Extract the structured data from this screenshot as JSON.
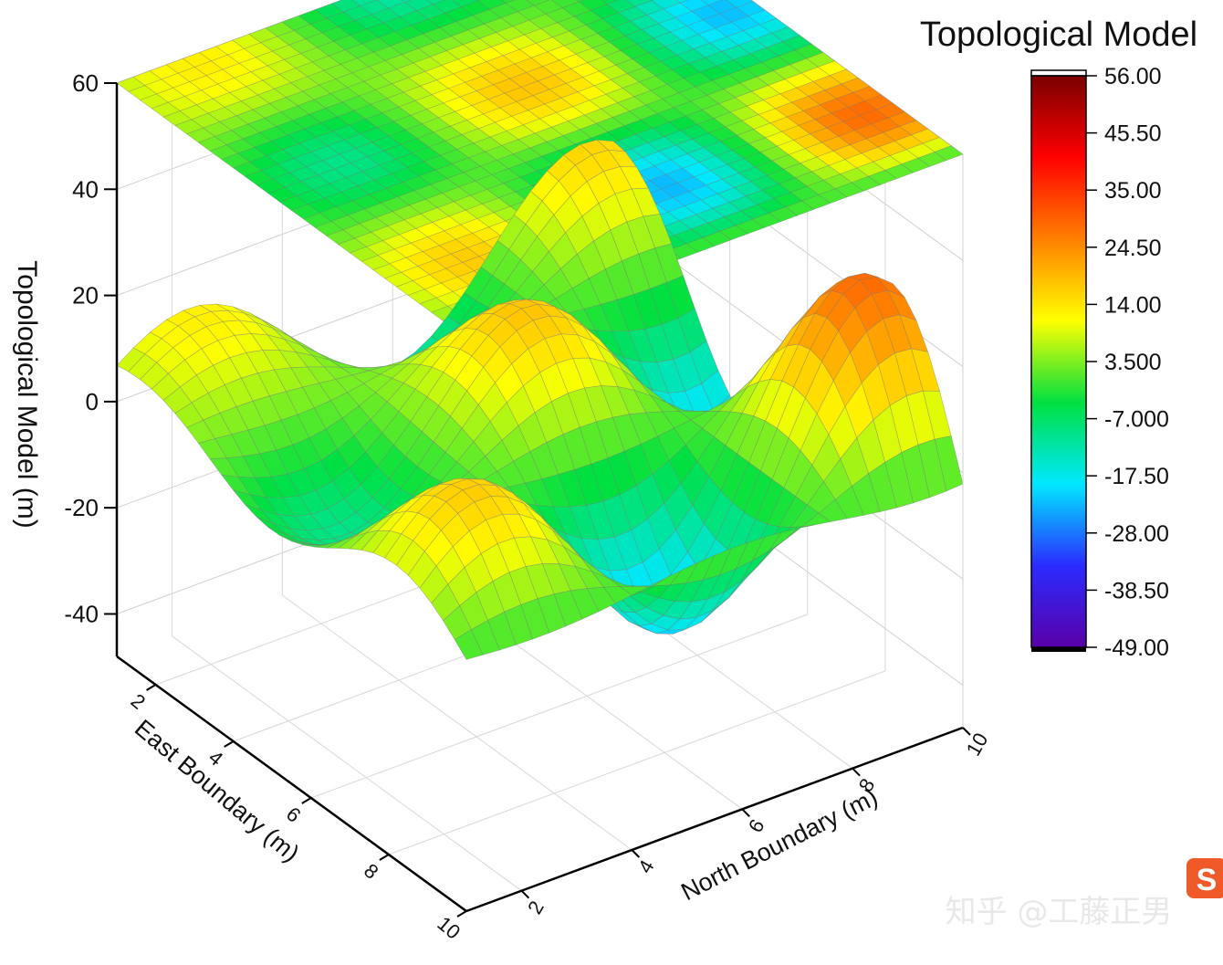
{
  "chart_data": {
    "type": "surface3d",
    "title": "Topological Model",
    "xlabel": "East Boundary (m)",
    "ylabel": "North Boundary (m)",
    "zlabel": "Topological Model (m)",
    "x_ticks": [
      "2",
      "4",
      "6",
      "8",
      "10"
    ],
    "y_ticks": [
      "2",
      "4",
      "6",
      "8",
      "10"
    ],
    "z_ticks": [
      "-40",
      "-20",
      "0",
      "20",
      "40",
      "60"
    ],
    "xlim": [
      1,
      10
    ],
    "ylim": [
      1,
      10
    ],
    "zlim": [
      -48,
      60
    ],
    "grid_resolution": 30,
    "function": "(0.32*(X-1)+2.9)*(0.32*(Y-1)+2.9) * sin(Y*pi/3.6 - 0.35) * cos(X*pi/3.6 - 0.8) plus a smooth ridge term",
    "sample_points": [
      {
        "x": 2,
        "y": 10,
        "z": -48
      },
      {
        "x": 6,
        "y": 10,
        "z": 52
      },
      {
        "x": 8,
        "y": 3,
        "z": 43
      },
      {
        "x": 6,
        "y": 4,
        "z": -44
      },
      {
        "x": 1,
        "y": 1,
        "z": 0
      }
    ],
    "contour_projection": {
      "plane_z": 60,
      "shown": true
    },
    "colorbar": {
      "ticks": [
        "56.00",
        "45.50",
        "35.00",
        "24.50",
        "14.00",
        "3.500",
        "-7.000",
        "-17.50",
        "-28.00",
        "-38.50",
        "-49.00"
      ],
      "min": -49,
      "max": 56,
      "colormap": [
        "#5a00a8",
        "#2b2bff",
        "#00e8ff",
        "#00e040",
        "#ffff00",
        "#ff8000",
        "#ff0000",
        "#7a0000"
      ]
    }
  },
  "watermark": {
    "text": "知乎 @工藤正男",
    "badge": "S"
  }
}
